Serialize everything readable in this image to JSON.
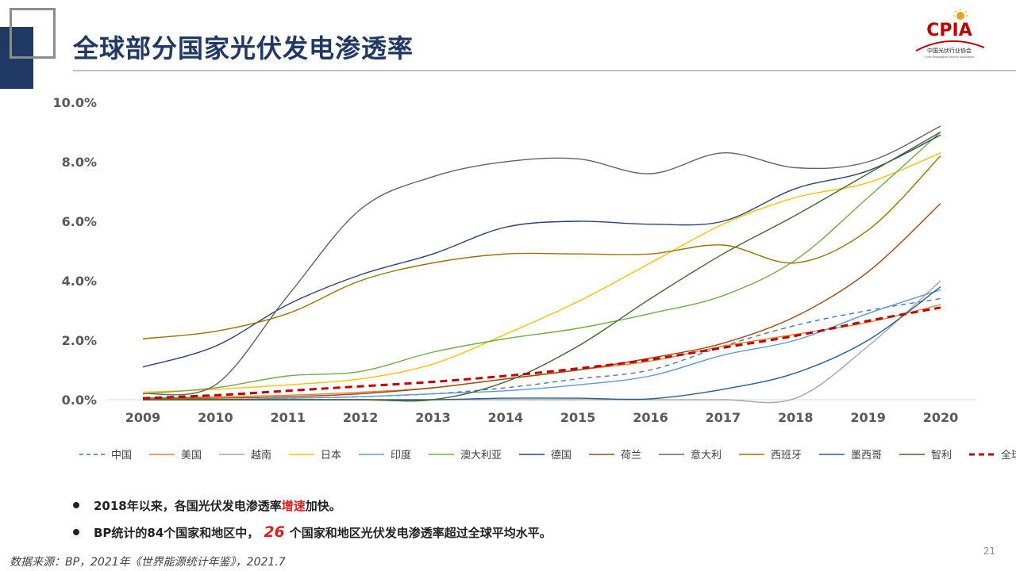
{
  "title": "全球部分国家光伏发电渗透率",
  "logo": {
    "text": "CPIA",
    "cn": "中国光伏行业协会",
    "en": "China Photovoltaic Industry Association"
  },
  "chart_data": {
    "type": "line",
    "x": [
      "2009",
      "2010",
      "2011",
      "2012",
      "2013",
      "2014",
      "2015",
      "2016",
      "2017",
      "2018",
      "2019",
      "2020"
    ],
    "ylim": [
      0,
      10
    ],
    "yticks": [
      "0.0%",
      "2.0%",
      "4.0%",
      "6.0%",
      "8.0%",
      "10.0%"
    ],
    "grid": false,
    "legend_position": "bottom",
    "series": [
      {
        "name": "中国",
        "color": "#4472c4",
        "dash": true,
        "values": [
          0.0,
          0.0,
          0.05,
          0.1,
          0.2,
          0.4,
          0.7,
          1.0,
          1.8,
          2.5,
          3.0,
          3.4
        ]
      },
      {
        "name": "美国",
        "color": "#ed7d31",
        "dash": false,
        "values": [
          0.05,
          0.1,
          0.15,
          0.25,
          0.4,
          0.7,
          1.0,
          1.3,
          1.8,
          2.2,
          2.6,
          3.2
        ]
      },
      {
        "name": "越南",
        "color": "#a5a5a5",
        "dash": false,
        "values": [
          0,
          0,
          0,
          0,
          0,
          0,
          0,
          0,
          0,
          0.05,
          1.8,
          4.0
        ]
      },
      {
        "name": "日本",
        "color": "#ffc000",
        "dash": false,
        "values": [
          0.25,
          0.35,
          0.5,
          0.7,
          1.2,
          2.2,
          3.3,
          4.6,
          5.9,
          6.8,
          7.3,
          8.3
        ]
      },
      {
        "name": "印度",
        "color": "#5b9bd5",
        "dash": false,
        "values": [
          0,
          0,
          0.05,
          0.1,
          0.2,
          0.3,
          0.5,
          0.8,
          1.5,
          2.0,
          2.9,
          3.7
        ]
      },
      {
        "name": "澳大利亚",
        "color": "#70ad47",
        "dash": false,
        "values": [
          0.2,
          0.4,
          0.8,
          0.95,
          1.6,
          2.05,
          2.4,
          2.9,
          3.5,
          4.7,
          6.8,
          9.0
        ]
      },
      {
        "name": "德国",
        "color": "#264478",
        "dash": false,
        "values": [
          1.1,
          1.8,
          3.2,
          4.2,
          4.9,
          5.8,
          6.0,
          5.9,
          6.0,
          7.1,
          7.7,
          8.9
        ]
      },
      {
        "name": "荷兰",
        "color": "#9e480e",
        "dash": false,
        "values": [
          0.05,
          0.05,
          0.1,
          0.2,
          0.4,
          0.7,
          1.0,
          1.4,
          1.9,
          2.8,
          4.3,
          6.6
        ]
      },
      {
        "name": "意大利",
        "color": "#636363",
        "dash": false,
        "values": [
          0.2,
          0.5,
          3.5,
          6.4,
          7.5,
          8.0,
          8.1,
          7.6,
          8.3,
          7.8,
          8.0,
          9.2
        ]
      },
      {
        "name": "西班牙",
        "color": "#997300",
        "dash": false,
        "values": [
          2.05,
          2.3,
          2.9,
          4.0,
          4.6,
          4.9,
          4.9,
          4.9,
          5.2,
          4.6,
          5.7,
          8.2
        ]
      },
      {
        "name": "墨西哥",
        "color": "#255e91",
        "dash": false,
        "values": [
          0,
          0,
          0,
          0,
          0,
          0.05,
          0.05,
          0.03,
          0.35,
          0.9,
          2.0,
          3.8
        ]
      },
      {
        "name": "智利",
        "color": "#43682b",
        "dash": false,
        "values": [
          0,
          0,
          0,
          0,
          0,
          0.6,
          1.8,
          3.4,
          4.9,
          6.2,
          7.6,
          9.0
        ]
      },
      {
        "name": "全球",
        "color": "#c00000",
        "dash": true,
        "bold": true,
        "values": [
          0.05,
          0.15,
          0.3,
          0.45,
          0.6,
          0.8,
          1.05,
          1.35,
          1.75,
          2.15,
          2.65,
          3.1
        ]
      }
    ]
  },
  "bullets": {
    "b1_pre": "2018年以来，各国光伏发电渗透率",
    "b1_red": "增速",
    "b1_post": "加快。",
    "b2_pre": "BP统计的84个国家和地区中，",
    "b2_num": "26",
    "b2_post": "个国家和地区光伏发电渗透率超过全球平均水平。"
  },
  "source": "数据来源：BP，2021年《世界能源统计年鉴》，2021.7",
  "page_number": "21"
}
